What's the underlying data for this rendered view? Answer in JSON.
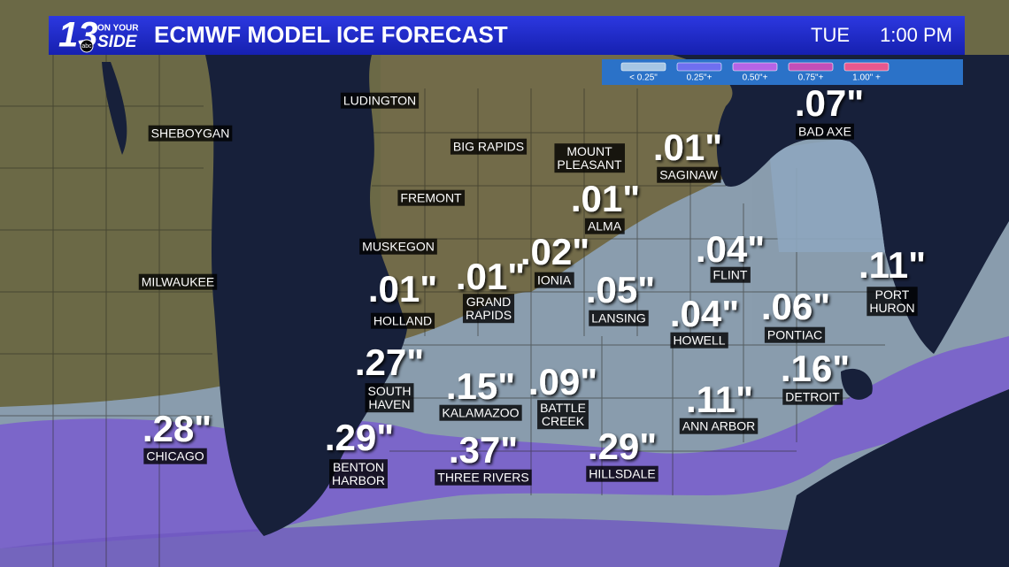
{
  "header": {
    "logo": {
      "number": "13",
      "network": "abc",
      "line1": "ON YOUR",
      "line2": "SIDE"
    },
    "title": "ECMWF MODEL ICE FORECAST",
    "day": "TUE",
    "time": "1:00 PM"
  },
  "legend": [
    {
      "label": "< 0.25\"",
      "color": "#a6c6e4"
    },
    {
      "label": "0.25\"+",
      "color": "#6f6ff0"
    },
    {
      "label": "0.50\"+",
      "color": "#b564e6"
    },
    {
      "label": "0.75\"+",
      "color": "#c24fb8"
    },
    {
      "label": "1.00\" +",
      "color": "#e8588e"
    }
  ],
  "cities": [
    {
      "label": [
        "SHEBOYGAN"
      ]
    },
    {
      "label": [
        "LUDINGTON"
      ]
    },
    {
      "label": [
        "MILWAUKEE"
      ]
    },
    {
      "label": [
        "BIG RAPIDS"
      ]
    },
    {
      "label": [
        "FREMONT"
      ]
    },
    {
      "label": [
        "MUSKEGON"
      ]
    },
    {
      "label": [
        "MOUNT",
        "PLEASANT"
      ]
    }
  ],
  "amounts": [
    {
      "amount": ".07\"",
      "label": [
        "BAD AXE"
      ]
    },
    {
      "amount": ".01\"",
      "label": [
        "SAGINAW"
      ]
    },
    {
      "amount": ".01\"",
      "label": [
        "ALMA"
      ]
    },
    {
      "amount": ".02\"",
      "label": [
        "IONIA"
      ]
    },
    {
      "amount": ".01\"",
      "label": [
        "GRAND",
        "RAPIDS"
      ]
    },
    {
      "amount": ".01\"",
      "label": [
        "HOLLAND"
      ]
    },
    {
      "amount": ".04\"",
      "label": [
        "FLINT"
      ]
    },
    {
      "amount": ".05\"",
      "label": [
        "LANSING"
      ]
    },
    {
      "amount": ".04\"",
      "label": [
        "HOWELL"
      ]
    },
    {
      "amount": ".06\"",
      "label": [
        "PONTIAC"
      ]
    },
    {
      "amount": ".11\"",
      "label": [
        "PORT",
        "HURON"
      ]
    },
    {
      "amount": ".27\"",
      "label": [
        "SOUTH",
        "HAVEN"
      ]
    },
    {
      "amount": ".15\"",
      "label": [
        "KALAMAZOO"
      ]
    },
    {
      "amount": ".09\"",
      "label": [
        "BATTLE",
        "CREEK"
      ]
    },
    {
      "amount": ".11\"",
      "label": [
        "ANN ARBOR"
      ]
    },
    {
      "amount": ".16\"",
      "label": [
        "DETROIT"
      ]
    },
    {
      "amount": ".28\"",
      "label": [
        "CHICAGO"
      ]
    },
    {
      "amount": ".29\"",
      "label": [
        "BENTON",
        "HARBOR"
      ]
    },
    {
      "amount": ".37\"",
      "label": [
        "THREE RIVERS"
      ]
    },
    {
      "amount": ".29\"",
      "label": [
        "HILLSDALE"
      ]
    }
  ]
}
